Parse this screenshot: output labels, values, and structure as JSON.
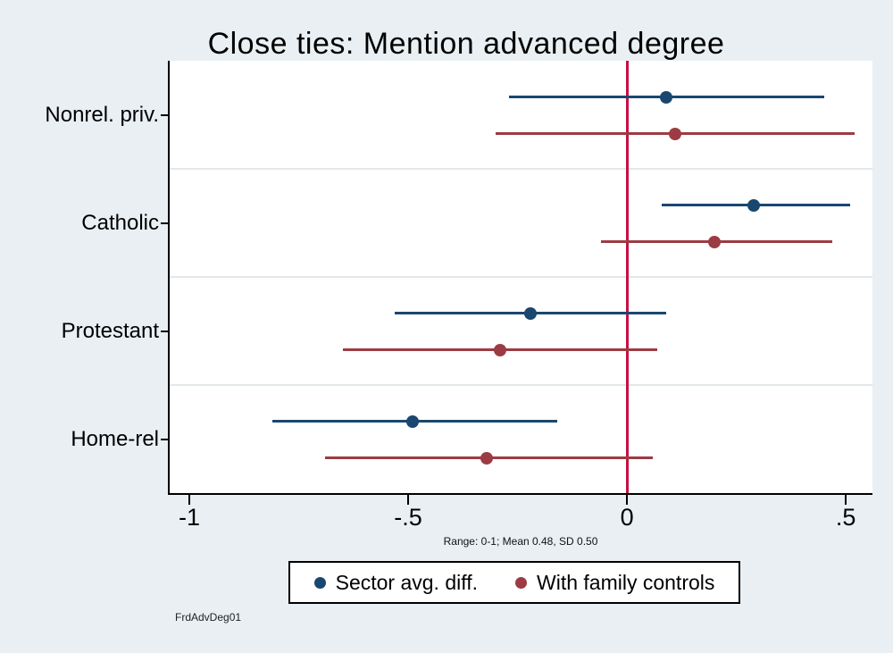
{
  "figure": {
    "background_color": "#e9eff3",
    "plot_background": "#ffffff",
    "title": "Close ties: Mention advanced degree",
    "note": "Range: 0-1; Mean 0.48, SD 0.50",
    "watermark": "FrdAdvDeg01"
  },
  "chart_data": {
    "type": "scatter",
    "subtype": "coefficient-plot-with-confidence-intervals",
    "title": "Close ties: Mention advanced degree",
    "categories": [
      "Nonrel. priv.",
      "Catholic",
      "Protestant",
      "Home-rel"
    ],
    "series": [
      {
        "name": "Sector avg. diff.",
        "color": "#1a476f",
        "estimates": [
          0.09,
          0.29,
          -0.22,
          -0.49
        ],
        "ci_low": [
          -0.27,
          0.08,
          -0.53,
          -0.81
        ],
        "ci_high": [
          0.45,
          0.51,
          0.09,
          -0.16
        ]
      },
      {
        "name": "With family controls",
        "color": "#9c3b43",
        "estimates": [
          0.11,
          0.2,
          -0.29,
          -0.32
        ],
        "ci_low": [
          -0.3,
          -0.06,
          -0.65,
          -0.69
        ],
        "ci_high": [
          0.52,
          0.47,
          0.07,
          0.06
        ]
      }
    ],
    "x_ticks": [
      {
        "value": -1,
        "label": "-1"
      },
      {
        "value": -0.5,
        "label": "-.5"
      },
      {
        "value": 0,
        "label": "0"
      },
      {
        "value": 0.5,
        "label": ".5"
      }
    ],
    "xlim": [
      -1.045,
      0.561
    ],
    "reference_line": {
      "x": 0,
      "color": "#c51143"
    },
    "grid": "horizontal-category-separators",
    "grid_color": "#e2e8ea",
    "legend": {
      "position": "bottom",
      "entries": [
        "Sector avg. diff.",
        "With family controls"
      ]
    },
    "xlabel": "",
    "ylabel": "",
    "note": "Range: 0-1; Mean 0.48, SD 0.50",
    "watermark": "FrdAdvDeg01"
  }
}
